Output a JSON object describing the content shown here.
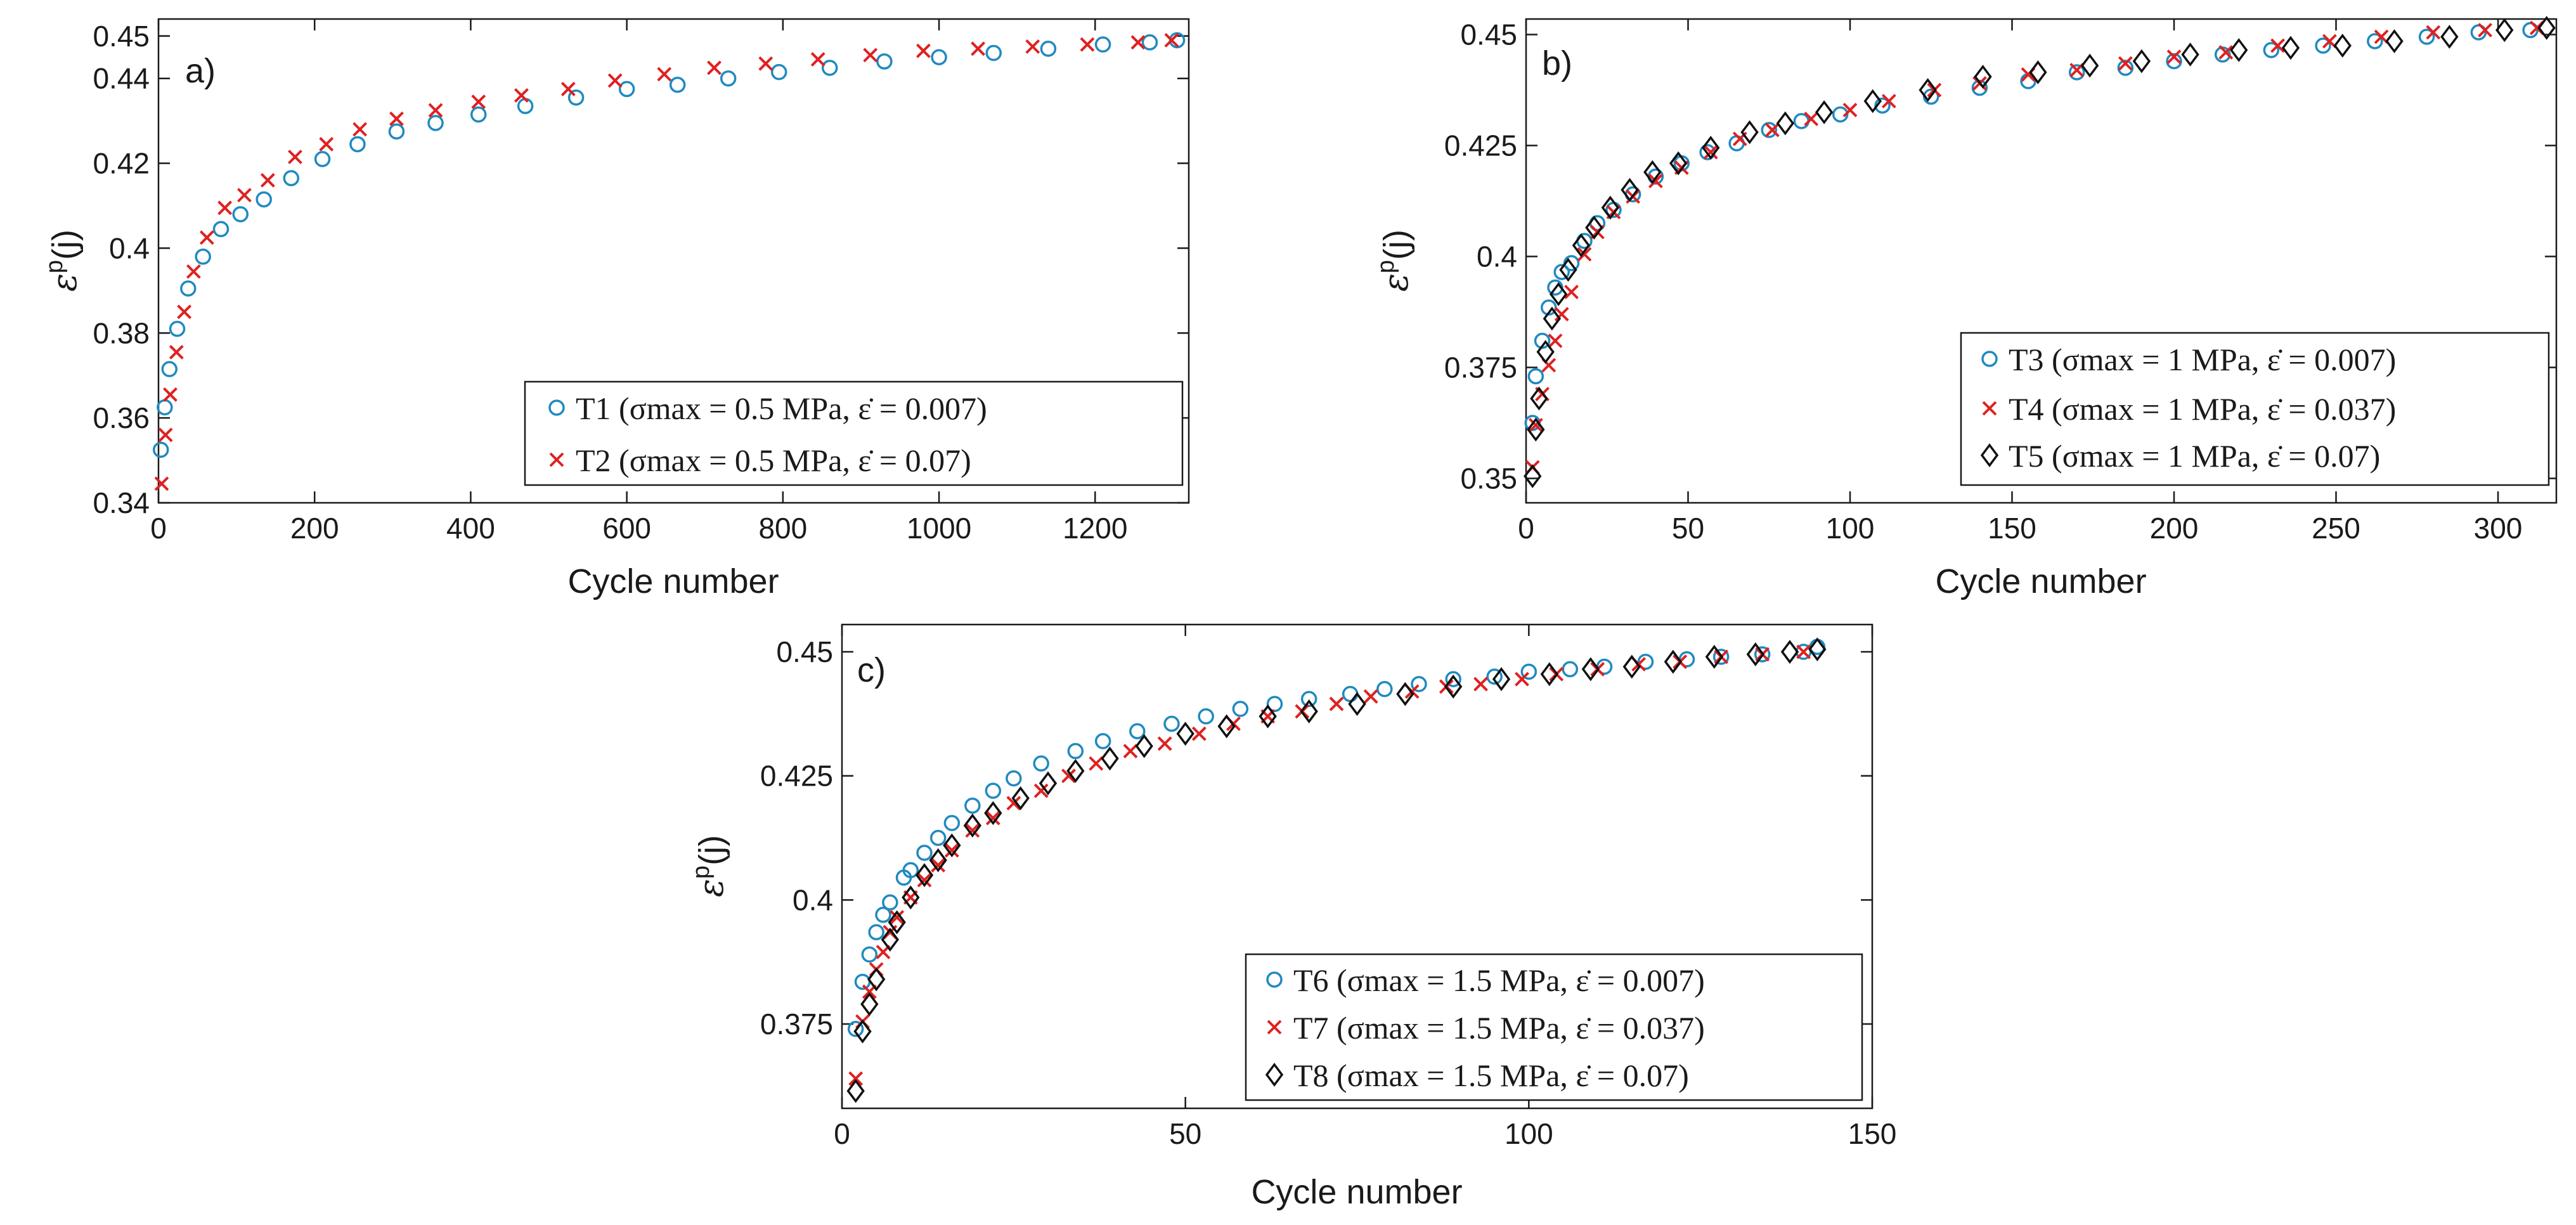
{
  "chart_data": [
    {
      "type": "scatter",
      "panel_label": "a)",
      "xlabel": "Cycle number",
      "ylabel_main": "ε",
      "ylabel_sup": "p",
      "ylabel_tail": "(j)",
      "xlim": [
        0,
        1320
      ],
      "ylim": [
        0.34,
        0.454
      ],
      "xticks": [
        0,
        200,
        400,
        600,
        800,
        1000,
        1200
      ],
      "yticks": [
        0.34,
        0.36,
        0.38,
        0.4,
        0.42,
        0.44,
        0.45
      ],
      "ytick_labels": [
        "0.34",
        "0.36",
        "0.38",
        "0.4",
        "0.42",
        "0.44",
        "0.45"
      ],
      "series": [
        {
          "name": "T1 (σmax = 0.5 MPa, ε̇ = 0.007)",
          "marker": "circle",
          "color": "#1f8ac0",
          "x": [
            3,
            8,
            14,
            24,
            38,
            57,
            80,
            105,
            135,
            170,
            210,
            255,
            305,
            355,
            410,
            470,
            535,
            600,
            665,
            730,
            795,
            860,
            930,
            1000,
            1070,
            1140,
            1210,
            1270,
            1305
          ],
          "y": [
            0.3525,
            0.3625,
            0.3715,
            0.381,
            0.3905,
            0.398,
            0.4045,
            0.408,
            0.4115,
            0.4165,
            0.421,
            0.4245,
            0.4275,
            0.4295,
            0.4315,
            0.4335,
            0.4355,
            0.4375,
            0.4385,
            0.44,
            0.4415,
            0.4425,
            0.444,
            0.445,
            0.446,
            0.447,
            0.448,
            0.4485,
            0.449
          ]
        },
        {
          "name": "T2 (σmax = 0.5 MPa, ε̇ = 0.07)",
          "marker": "cross",
          "color": "#e02020",
          "x": [
            4,
            9,
            15,
            23,
            33,
            45,
            62,
            85,
            110,
            140,
            175,
            215,
            258,
            305,
            355,
            410,
            465,
            525,
            585,
            648,
            712,
            778,
            845,
            912,
            980,
            1050,
            1120,
            1190,
            1255,
            1298
          ],
          "y": [
            0.3445,
            0.356,
            0.3655,
            0.3755,
            0.385,
            0.3945,
            0.4025,
            0.4095,
            0.4125,
            0.416,
            0.4215,
            0.4245,
            0.428,
            0.4305,
            0.4325,
            0.4345,
            0.436,
            0.4375,
            0.4395,
            0.441,
            0.4425,
            0.4435,
            0.4445,
            0.4455,
            0.4465,
            0.447,
            0.4475,
            0.448,
            0.4485,
            0.449
          ]
        }
      ]
    },
    {
      "type": "scatter",
      "panel_label": "b)",
      "xlabel": "Cycle number",
      "ylabel_main": "ε",
      "ylabel_sup": "p",
      "ylabel_tail": "(j)",
      "xlim": [
        0,
        318
      ],
      "ylim": [
        0.3445,
        0.4535
      ],
      "xticks": [
        0,
        50,
        100,
        150,
        200,
        250,
        300
      ],
      "yticks": [
        0.35,
        0.375,
        0.4,
        0.425,
        0.45
      ],
      "ytick_labels": [
        "0.35",
        "0.375",
        "0.4",
        "0.425",
        "0.45"
      ],
      "series": [
        {
          "name": "T3 (σmax = 1 MPa, ε̇ = 0.007)",
          "marker": "circle",
          "color": "#1f8ac0",
          "x": [
            2,
            3,
            5,
            7,
            9,
            11,
            14,
            18,
            22,
            27,
            33,
            40,
            48,
            56,
            65,
            75,
            85,
            97,
            110,
            125,
            140,
            155,
            170,
            185,
            200,
            215,
            230,
            246,
            262,
            278,
            294,
            310
          ],
          "y": [
            0.3625,
            0.373,
            0.381,
            0.3885,
            0.393,
            0.3965,
            0.3985,
            0.4035,
            0.4075,
            0.4105,
            0.414,
            0.418,
            0.421,
            0.4235,
            0.4255,
            0.4285,
            0.4305,
            0.432,
            0.434,
            0.436,
            0.438,
            0.4395,
            0.4415,
            0.4425,
            0.444,
            0.4455,
            0.4465,
            0.4475,
            0.4485,
            0.4495,
            0.4505,
            0.451
          ]
        },
        {
          "name": "T4 (σmax = 1 MPa, ε̇ = 0.037)",
          "marker": "cross",
          "color": "#e02020",
          "x": [
            2,
            3,
            5,
            7,
            9,
            11,
            14,
            18,
            22,
            27,
            33,
            40,
            48,
            57,
            66,
            76,
            88,
            100,
            112,
            126,
            140,
            155,
            170,
            185,
            200,
            216,
            232,
            248,
            264,
            280,
            296,
            312
          ],
          "y": [
            0.3525,
            0.362,
            0.369,
            0.3755,
            0.381,
            0.387,
            0.392,
            0.4005,
            0.4055,
            0.41,
            0.4135,
            0.417,
            0.42,
            0.4235,
            0.4265,
            0.4285,
            0.431,
            0.433,
            0.435,
            0.4375,
            0.439,
            0.441,
            0.442,
            0.4435,
            0.445,
            0.446,
            0.4475,
            0.4485,
            0.4495,
            0.4505,
            0.451,
            0.4515
          ]
        },
        {
          "name": "T5 (σmax = 1 MPa, ε̇ = 0.07)",
          "marker": "diamond",
          "color": "#111111",
          "x": [
            2,
            3,
            4,
            6,
            8,
            10,
            13,
            17,
            21,
            26,
            32,
            39,
            47,
            57,
            69,
            80,
            92,
            107,
            124,
            141,
            158,
            174,
            190,
            205,
            220,
            236,
            252,
            268,
            285,
            302,
            315
          ],
          "y": [
            0.3505,
            0.361,
            0.368,
            0.3785,
            0.386,
            0.3915,
            0.397,
            0.4025,
            0.4065,
            0.411,
            0.415,
            0.419,
            0.421,
            0.4245,
            0.428,
            0.43,
            0.4325,
            0.435,
            0.4375,
            0.4405,
            0.4415,
            0.443,
            0.444,
            0.4455,
            0.4465,
            0.447,
            0.4475,
            0.4485,
            0.4495,
            0.451,
            0.4515
          ]
        }
      ]
    },
    {
      "type": "scatter",
      "panel_label": "c)",
      "xlabel": "Cycle number",
      "ylabel_main": "ε",
      "ylabel_sup": "p",
      "ylabel_tail": "(j)",
      "xlim": [
        0,
        150
      ],
      "ylim": [
        0.358,
        0.4555
      ],
      "xticks": [
        0,
        50,
        100,
        150
      ],
      "yticks": [
        0.375,
        0.4,
        0.425,
        0.45
      ],
      "ytick_labels": [
        "0.375",
        "0.4",
        "0.425",
        "0.45"
      ],
      "series": [
        {
          "name": "T6 (σmax = 1.5 MPa, ε̇ = 0.007)",
          "marker": "circle",
          "color": "#1f8ac0",
          "x": [
            2,
            3,
            4,
            5,
            6,
            7,
            9,
            10,
            12,
            14,
            16,
            19,
            22,
            25,
            29,
            34,
            38,
            43,
            48,
            53,
            58,
            63,
            68,
            74,
            79,
            84,
            89,
            95,
            100,
            106,
            111,
            117,
            123,
            128,
            134,
            140,
            142
          ],
          "y": [
            0.374,
            0.3835,
            0.389,
            0.3935,
            0.397,
            0.3995,
            0.4045,
            0.406,
            0.4095,
            0.4125,
            0.4155,
            0.419,
            0.422,
            0.4245,
            0.4275,
            0.43,
            0.432,
            0.434,
            0.4355,
            0.437,
            0.4385,
            0.4395,
            0.4405,
            0.4415,
            0.4425,
            0.4435,
            0.4445,
            0.445,
            0.446,
            0.4465,
            0.447,
            0.448,
            0.4485,
            0.449,
            0.4495,
            0.45,
            0.451
          ]
        },
        {
          "name": "T7 (σmax = 1.5 MPa, ε̇ = 0.037)",
          "marker": "cross",
          "color": "#e02020",
          "x": [
            2,
            3,
            4,
            5,
            6,
            7,
            8,
            10,
            12,
            14,
            16,
            19,
            22,
            25,
            29,
            33,
            37,
            42,
            47,
            52,
            57,
            62,
            67,
            72,
            77,
            83,
            88,
            93,
            99,
            104,
            110,
            116,
            122,
            128,
            134,
            140
          ],
          "y": [
            0.364,
            0.3755,
            0.3815,
            0.386,
            0.3895,
            0.3935,
            0.3965,
            0.4005,
            0.404,
            0.407,
            0.41,
            0.414,
            0.4165,
            0.4195,
            0.422,
            0.425,
            0.4275,
            0.43,
            0.4315,
            0.4335,
            0.4355,
            0.437,
            0.438,
            0.4395,
            0.441,
            0.442,
            0.443,
            0.4435,
            0.4445,
            0.4455,
            0.4465,
            0.4475,
            0.448,
            0.449,
            0.4495,
            0.45
          ]
        },
        {
          "name": "T8 (σmax = 1.5 MPa, ε̇ = 0.07)",
          "marker": "diamond",
          "color": "#111111",
          "x": [
            2,
            3,
            4,
            5,
            7,
            8,
            10,
            12,
            14,
            16,
            19,
            22,
            26,
            30,
            34,
            39,
            44,
            50,
            56,
            62,
            68,
            75,
            82,
            89,
            96,
            103,
            109,
            115,
            121,
            127,
            133,
            138,
            142
          ],
          "y": [
            0.3615,
            0.3735,
            0.379,
            0.384,
            0.392,
            0.3955,
            0.4005,
            0.405,
            0.408,
            0.411,
            0.415,
            0.4175,
            0.4205,
            0.4235,
            0.426,
            0.4285,
            0.431,
            0.4335,
            0.435,
            0.437,
            0.438,
            0.4395,
            0.4415,
            0.443,
            0.4445,
            0.4455,
            0.4465,
            0.447,
            0.448,
            0.449,
            0.4495,
            0.45,
            0.4505
          ]
        }
      ]
    }
  ]
}
